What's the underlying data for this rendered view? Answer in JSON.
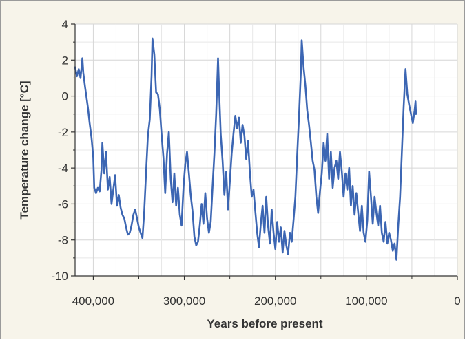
{
  "chart_data": {
    "type": "line",
    "title": "",
    "xlabel": "Years before present",
    "ylabel": "Temperature change [°C]",
    "xlim": [
      420000,
      0
    ],
    "ylim": [
      -10,
      4
    ],
    "x_reversed": true,
    "grid": true,
    "legend": "none",
    "x_ticks": [
      {
        "value": 400000,
        "label": "400,000"
      },
      {
        "value": 300000,
        "label": "300,000"
      },
      {
        "value": 200000,
        "label": "200,000"
      },
      {
        "value": 100000,
        "label": "100,000"
      },
      {
        "value": 0,
        "label": "0"
      }
    ],
    "y_ticks": [
      {
        "value": 4,
        "label": "4"
      },
      {
        "value": 2,
        "label": "2"
      },
      {
        "value": 0,
        "label": "0"
      },
      {
        "value": -2,
        "label": "-2"
      },
      {
        "value": -4,
        "label": "-4"
      },
      {
        "value": -6,
        "label": "-6"
      },
      {
        "value": -8,
        "label": "-8"
      },
      {
        "value": -10,
        "label": "-10"
      }
    ],
    "series": [
      {
        "color": "#3c66b3",
        "points": [
          [
            420000,
            1.6
          ],
          [
            418000,
            1.1
          ],
          [
            416000,
            1.5
          ],
          [
            414000,
            1.0
          ],
          [
            412000,
            2.1
          ],
          [
            411000,
            1.3
          ],
          [
            409000,
            0.5
          ],
          [
            406000,
            -0.6
          ],
          [
            404000,
            -1.5
          ],
          [
            402000,
            -2.3
          ],
          [
            400000,
            -3.4
          ],
          [
            399000,
            -5.1
          ],
          [
            397000,
            -5.4
          ],
          [
            395000,
            -5.1
          ],
          [
            393000,
            -5.3
          ],
          [
            391000,
            -4.1
          ],
          [
            390000,
            -2.6
          ],
          [
            388000,
            -4.3
          ],
          [
            386000,
            -3.1
          ],
          [
            384000,
            -5.2
          ],
          [
            382000,
            -4.5
          ],
          [
            380000,
            -6.0
          ],
          [
            378000,
            -5.2
          ],
          [
            376000,
            -4.4
          ],
          [
            374000,
            -6.1
          ],
          [
            372000,
            -5.5
          ],
          [
            370000,
            -6.2
          ],
          [
            368000,
            -6.6
          ],
          [
            366000,
            -6.8
          ],
          [
            364000,
            -7.3
          ],
          [
            362000,
            -7.7
          ],
          [
            360000,
            -7.6
          ],
          [
            358000,
            -7.2
          ],
          [
            356000,
            -6.6
          ],
          [
            354000,
            -6.3
          ],
          [
            352000,
            -6.8
          ],
          [
            350000,
            -7.3
          ],
          [
            348000,
            -7.6
          ],
          [
            346000,
            -7.9
          ],
          [
            344000,
            -6.4
          ],
          [
            342000,
            -4.2
          ],
          [
            340000,
            -2.2
          ],
          [
            338000,
            -1.3
          ],
          [
            336000,
            1.1
          ],
          [
            335000,
            3.2
          ],
          [
            333000,
            2.3
          ],
          [
            331000,
            0.2
          ],
          [
            329000,
            0.1
          ],
          [
            327000,
            -0.7
          ],
          [
            325000,
            -2.1
          ],
          [
            323000,
            -3.4
          ],
          [
            321000,
            -5.4
          ],
          [
            319000,
            -3.2
          ],
          [
            317000,
            -2.0
          ],
          [
            315000,
            -4.6
          ],
          [
            313000,
            -5.9
          ],
          [
            311000,
            -4.3
          ],
          [
            309000,
            -6.1
          ],
          [
            307000,
            -5.1
          ],
          [
            305000,
            -6.6
          ],
          [
            303000,
            -7.2
          ],
          [
            301000,
            -5.1
          ],
          [
            299000,
            -3.8
          ],
          [
            297000,
            -3.1
          ],
          [
            295000,
            -4.3
          ],
          [
            293000,
            -5.5
          ],
          [
            291000,
            -6.4
          ],
          [
            289000,
            -7.8
          ],
          [
            287000,
            -8.3
          ],
          [
            285000,
            -8.1
          ],
          [
            283000,
            -7.2
          ],
          [
            281000,
            -6.0
          ],
          [
            279000,
            -7.1
          ],
          [
            277000,
            -5.4
          ],
          [
            275000,
            -6.8
          ],
          [
            273000,
            -7.6
          ],
          [
            271000,
            -7.0
          ],
          [
            269000,
            -5.1
          ],
          [
            267000,
            -3.2
          ],
          [
            265000,
            -1.0
          ],
          [
            263000,
            2.1
          ],
          [
            262000,
            0.6
          ],
          [
            260000,
            -2.1
          ],
          [
            258000,
            -3.6
          ],
          [
            256000,
            -5.5
          ],
          [
            254000,
            -4.2
          ],
          [
            252000,
            -6.3
          ],
          [
            250000,
            -4.8
          ],
          [
            248000,
            -3.2
          ],
          [
            246000,
            -2.1
          ],
          [
            244000,
            -1.1
          ],
          [
            242000,
            -1.8
          ],
          [
            240000,
            -1.2
          ],
          [
            238000,
            -2.6
          ],
          [
            236000,
            -1.6
          ],
          [
            234000,
            -2.2
          ],
          [
            232000,
            -3.5
          ],
          [
            230000,
            -2.5
          ],
          [
            228000,
            -4.2
          ],
          [
            226000,
            -5.6
          ],
          [
            224000,
            -5.2
          ],
          [
            222000,
            -6.4
          ],
          [
            220000,
            -7.6
          ],
          [
            218000,
            -8.4
          ],
          [
            216000,
            -7.1
          ],
          [
            214000,
            -6.1
          ],
          [
            212000,
            -7.6
          ],
          [
            210000,
            -5.6
          ],
          [
            208000,
            -7.2
          ],
          [
            206000,
            -8.2
          ],
          [
            204000,
            -6.3
          ],
          [
            202000,
            -7.6
          ],
          [
            200000,
            -8.5
          ],
          [
            198000,
            -7.0
          ],
          [
            196000,
            -8.1
          ],
          [
            194000,
            -7.3
          ],
          [
            192000,
            -8.7
          ],
          [
            190000,
            -7.5
          ],
          [
            188000,
            -8.3
          ],
          [
            186000,
            -8.8
          ],
          [
            184000,
            -7.6
          ],
          [
            182000,
            -8.1
          ],
          [
            180000,
            -6.9
          ],
          [
            178000,
            -5.6
          ],
          [
            176000,
            -3.3
          ],
          [
            174000,
            -1.1
          ],
          [
            172000,
            1.3
          ],
          [
            171000,
            3.1
          ],
          [
            169000,
            1.6
          ],
          [
            167000,
            0.6
          ],
          [
            165000,
            -0.8
          ],
          [
            163000,
            -1.6
          ],
          [
            161000,
            -2.6
          ],
          [
            159000,
            -3.6
          ],
          [
            157000,
            -4.1
          ],
          [
            155000,
            -5.6
          ],
          [
            153000,
            -6.5
          ],
          [
            151000,
            -5.3
          ],
          [
            149000,
            -4.3
          ],
          [
            147000,
            -2.6
          ],
          [
            145000,
            -3.6
          ],
          [
            143000,
            -2.1
          ],
          [
            141000,
            -4.6
          ],
          [
            139000,
            -3.1
          ],
          [
            137000,
            -5.1
          ],
          [
            135000,
            -4.0
          ],
          [
            133000,
            -3.6
          ],
          [
            131000,
            -4.6
          ],
          [
            129000,
            -3.1
          ],
          [
            127000,
            -4.2
          ],
          [
            125000,
            -5.6
          ],
          [
            123000,
            -4.3
          ],
          [
            121000,
            -5.2
          ],
          [
            119000,
            -4.0
          ],
          [
            117000,
            -6.1
          ],
          [
            115000,
            -5.0
          ],
          [
            113000,
            -6.6
          ],
          [
            111000,
            -5.4
          ],
          [
            109000,
            -6.5
          ],
          [
            107000,
            -7.5
          ],
          [
            105000,
            -6.1
          ],
          [
            103000,
            -7.6
          ],
          [
            101000,
            -8.1
          ],
          [
            99000,
            -6.9
          ],
          [
            97000,
            -4.2
          ],
          [
            95000,
            -5.6
          ],
          [
            93000,
            -7.1
          ],
          [
            91000,
            -5.6
          ],
          [
            89000,
            -6.5
          ],
          [
            87000,
            -7.2
          ],
          [
            85000,
            -6.1
          ],
          [
            83000,
            -7.6
          ],
          [
            81000,
            -8.1
          ],
          [
            79000,
            -7.0
          ],
          [
            77000,
            -8.2
          ],
          [
            75000,
            -7.6
          ],
          [
            73000,
            -8.0
          ],
          [
            71000,
            -8.6
          ],
          [
            69000,
            -8.2
          ],
          [
            67000,
            -9.1
          ],
          [
            65000,
            -7.2
          ],
          [
            63000,
            -5.6
          ],
          [
            61000,
            -3.1
          ],
          [
            59000,
            -0.6
          ],
          [
            57000,
            1.5
          ],
          [
            55000,
            0.1
          ],
          [
            53000,
            -0.5
          ],
          [
            51000,
            -1.0
          ],
          [
            49000,
            -1.5
          ],
          [
            47000,
            -0.8
          ],
          [
            46000,
            -0.3
          ],
          [
            45500,
            -1.0
          ]
        ]
      }
    ]
  }
}
